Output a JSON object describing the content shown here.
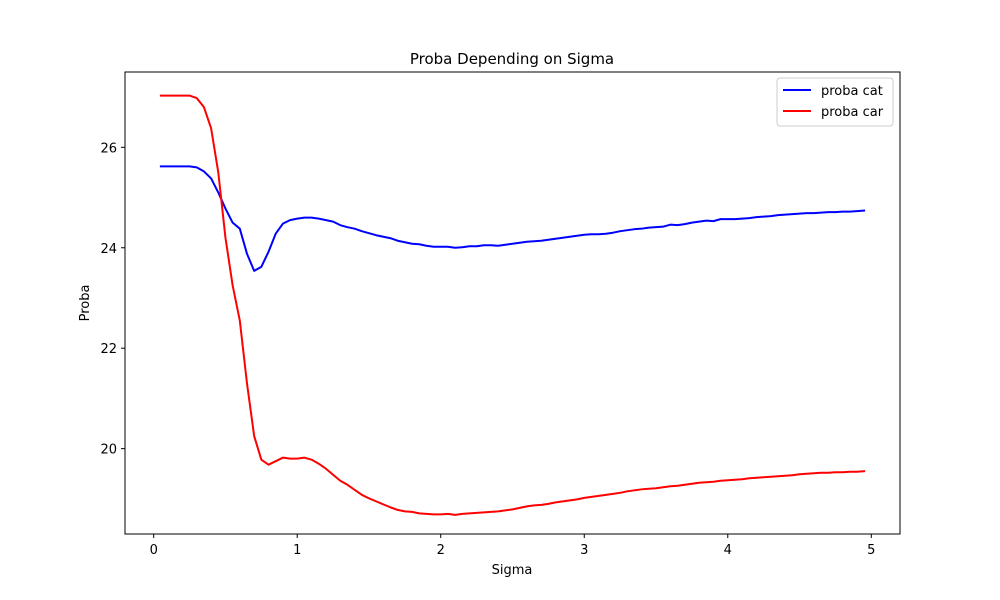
{
  "chart_data": {
    "type": "line",
    "title": "Proba Depending on Sigma",
    "xlabel": "Sigma",
    "ylabel": "Proba",
    "xlim": [
      -0.2,
      5.2
    ],
    "ylim": [
      18.3,
      27.5
    ],
    "xticks": [
      0,
      1,
      2,
      3,
      4,
      5
    ],
    "yticks": [
      20,
      22,
      24,
      26
    ],
    "grid": false,
    "legend_position": "upper right",
    "series": [
      {
        "name": "proba cat",
        "color": "#0000ff",
        "x": [
          0.05,
          0.1,
          0.15,
          0.2,
          0.25,
          0.3,
          0.35,
          0.4,
          0.45,
          0.5,
          0.55,
          0.6,
          0.65,
          0.7,
          0.75,
          0.8,
          0.85,
          0.9,
          0.95,
          1.0,
          1.05,
          1.1,
          1.15,
          1.2,
          1.25,
          1.3,
          1.35,
          1.4,
          1.45,
          1.5,
          1.55,
          1.6,
          1.65,
          1.7,
          1.75,
          1.8,
          1.85,
          1.9,
          1.95,
          2.0,
          2.05,
          2.1,
          2.15,
          2.2,
          2.25,
          2.3,
          2.35,
          2.4,
          2.45,
          2.5,
          2.55,
          2.6,
          2.65,
          2.7,
          2.75,
          2.8,
          2.85,
          2.9,
          2.95,
          3.0,
          3.05,
          3.1,
          3.15,
          3.2,
          3.25,
          3.3,
          3.35,
          3.4,
          3.45,
          3.5,
          3.55,
          3.6,
          3.65,
          3.7,
          3.75,
          3.8,
          3.85,
          3.9,
          3.95,
          4.0,
          4.05,
          4.1,
          4.15,
          4.2,
          4.25,
          4.3,
          4.35,
          4.4,
          4.45,
          4.5,
          4.55,
          4.6,
          4.65,
          4.7,
          4.75,
          4.8,
          4.85,
          4.9,
          4.95
        ],
        "y": [
          25.62,
          25.62,
          25.62,
          25.62,
          25.62,
          25.6,
          25.52,
          25.38,
          25.1,
          24.78,
          24.5,
          24.38,
          23.88,
          23.54,
          23.62,
          23.92,
          24.28,
          24.48,
          24.55,
          24.58,
          24.6,
          24.6,
          24.58,
          24.55,
          24.52,
          24.45,
          24.41,
          24.38,
          24.33,
          24.29,
          24.25,
          24.22,
          24.19,
          24.14,
          24.11,
          24.08,
          24.07,
          24.04,
          24.02,
          24.02,
          24.02,
          24.0,
          24.01,
          24.03,
          24.03,
          24.05,
          24.05,
          24.04,
          24.06,
          24.08,
          24.1,
          24.12,
          24.13,
          24.14,
          24.16,
          24.18,
          24.2,
          24.22,
          24.24,
          24.26,
          24.27,
          24.27,
          24.28,
          24.3,
          24.33,
          24.35,
          24.37,
          24.38,
          24.4,
          24.41,
          24.42,
          24.46,
          24.45,
          24.47,
          24.5,
          24.52,
          24.54,
          24.53,
          24.57,
          24.57,
          24.57,
          24.58,
          24.59,
          24.61,
          24.62,
          24.63,
          24.65,
          24.66,
          24.67,
          24.68,
          24.69,
          24.69,
          24.7,
          24.71,
          24.71,
          24.72,
          24.72,
          24.73,
          24.74
        ]
      },
      {
        "name": "proba car",
        "color": "#ff0000",
        "x": [
          0.05,
          0.1,
          0.15,
          0.2,
          0.25,
          0.3,
          0.35,
          0.4,
          0.45,
          0.5,
          0.55,
          0.6,
          0.65,
          0.7,
          0.75,
          0.8,
          0.85,
          0.9,
          0.95,
          1.0,
          1.05,
          1.1,
          1.15,
          1.2,
          1.25,
          1.3,
          1.35,
          1.4,
          1.45,
          1.5,
          1.55,
          1.6,
          1.65,
          1.7,
          1.75,
          1.8,
          1.85,
          1.9,
          1.95,
          2.0,
          2.05,
          2.1,
          2.15,
          2.2,
          2.25,
          2.3,
          2.35,
          2.4,
          2.45,
          2.5,
          2.55,
          2.6,
          2.65,
          2.7,
          2.75,
          2.8,
          2.85,
          2.9,
          2.95,
          3.0,
          3.05,
          3.1,
          3.15,
          3.2,
          3.25,
          3.3,
          3.35,
          3.4,
          3.45,
          3.5,
          3.55,
          3.6,
          3.65,
          3.7,
          3.75,
          3.8,
          3.85,
          3.9,
          3.95,
          4.0,
          4.05,
          4.1,
          4.15,
          4.2,
          4.25,
          4.3,
          4.35,
          4.4,
          4.45,
          4.5,
          4.55,
          4.6,
          4.65,
          4.7,
          4.75,
          4.8,
          4.85,
          4.9,
          4.95
        ],
        "y": [
          27.03,
          27.03,
          27.03,
          27.03,
          27.03,
          26.98,
          26.8,
          26.38,
          25.5,
          24.2,
          23.25,
          22.55,
          21.3,
          20.25,
          19.78,
          19.68,
          19.75,
          19.82,
          19.8,
          19.8,
          19.82,
          19.78,
          19.7,
          19.6,
          19.48,
          19.36,
          19.28,
          19.18,
          19.08,
          19.01,
          18.95,
          18.89,
          18.83,
          18.78,
          18.75,
          18.74,
          18.71,
          18.7,
          18.69,
          18.69,
          18.7,
          18.68,
          18.7,
          18.71,
          18.72,
          18.73,
          18.74,
          18.75,
          18.77,
          18.79,
          18.82,
          18.85,
          18.87,
          18.88,
          18.9,
          18.93,
          18.95,
          18.97,
          18.99,
          19.02,
          19.04,
          19.06,
          19.08,
          19.1,
          19.12,
          19.15,
          19.17,
          19.19,
          19.2,
          19.21,
          19.23,
          19.25,
          19.26,
          19.28,
          19.3,
          19.32,
          19.33,
          19.34,
          19.36,
          19.37,
          19.38,
          19.39,
          19.41,
          19.42,
          19.43,
          19.44,
          19.45,
          19.46,
          19.47,
          19.49,
          19.5,
          19.51,
          19.52,
          19.52,
          19.53,
          19.53,
          19.54,
          19.54,
          19.55
        ]
      }
    ]
  }
}
